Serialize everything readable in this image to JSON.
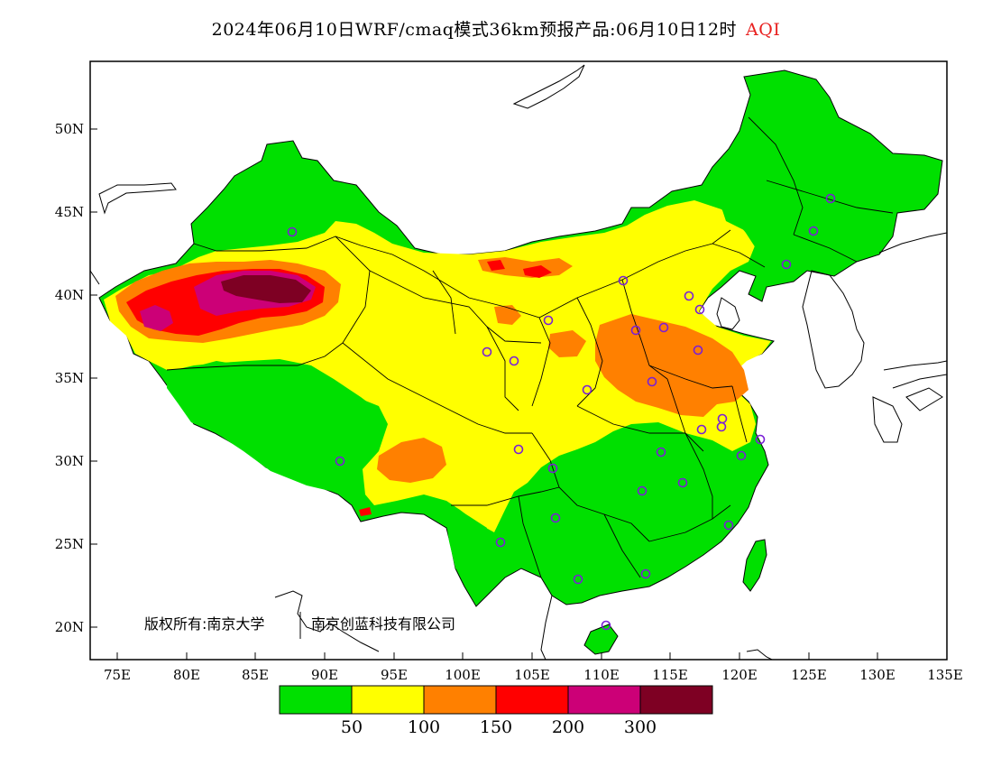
{
  "title": {
    "main": "2024年06月10日WRF/cmaq模式36km预报产品:06月10日12时",
    "product": "AQI"
  },
  "copyright": {
    "owner": "版权所有:南京大学",
    "partner": "南京创蓝科技有限公司"
  },
  "axes": {
    "lon_labels": [
      "75E",
      "80E",
      "85E",
      "90E",
      "95E",
      "100E",
      "105E",
      "110E",
      "115E",
      "120E",
      "125E",
      "130E",
      "135E"
    ],
    "lat_labels": [
      "50N",
      "45N",
      "40N",
      "35N",
      "30N",
      "25N",
      "20N"
    ]
  },
  "legend": {
    "colors": [
      "#00e000",
      "#ffff00",
      "#ff8000",
      "#ff0000",
      "#cc0077",
      "#7e0023"
    ],
    "labels": [
      "50",
      "100",
      "150",
      "200",
      "300"
    ]
  },
  "colors": {
    "good": "#00e000",
    "moderate": "#ffff00",
    "unhealthy_sensitive": "#ff8000",
    "unhealthy": "#ff0000",
    "very_unhealthy": "#cc0077",
    "hazardous": "#7e0023",
    "station_marker": "#7a1fd6"
  }
}
